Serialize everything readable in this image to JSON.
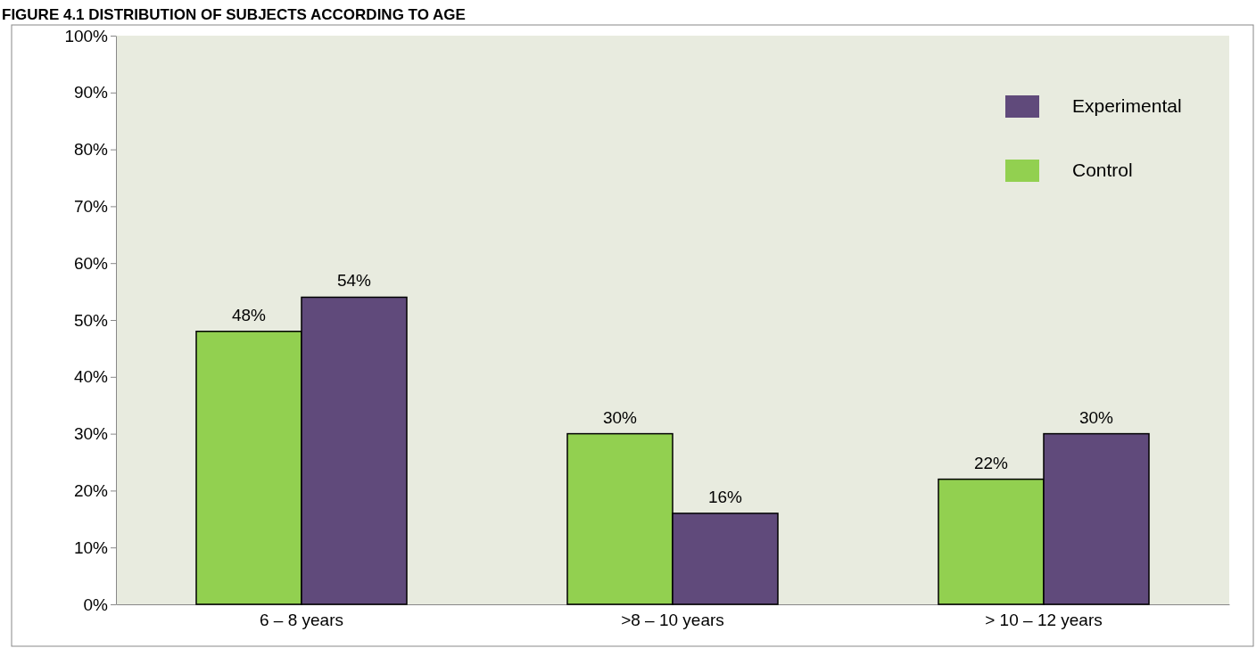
{
  "chart_data": {
    "type": "bar",
    "title": "FIGURE 4.1 DISTRIBUTION OF SUBJECTS ACCORDING TO AGE",
    "categories": [
      "6 – 8 years",
      ">8 – 10 years",
      "> 10 – 12 years"
    ],
    "series": [
      {
        "name": "Control",
        "color": "#92d050",
        "values": [
          48,
          30,
          22
        ]
      },
      {
        "name": "Experimental",
        "color": "#604a7b",
        "values": [
          54,
          16,
          30
        ]
      }
    ],
    "ylim": [
      0,
      100
    ],
    "yticks": [
      {
        "value": 0,
        "label": "0%"
      },
      {
        "value": 10,
        "label": "10%"
      },
      {
        "value": 20,
        "label": "20%"
      },
      {
        "value": 30,
        "label": "30%"
      },
      {
        "value": 40,
        "label": "40%"
      },
      {
        "value": 50,
        "label": "50%"
      },
      {
        "value": 60,
        "label": "60%"
      },
      {
        "value": 70,
        "label": "70%"
      },
      {
        "value": 80,
        "label": "80%"
      },
      {
        "value": 90,
        "label": "90%"
      },
      {
        "value": 100,
        "label": "100%"
      }
    ],
    "value_labels": [
      [
        "48%",
        "30%",
        "22%"
      ],
      [
        "54%",
        "16%",
        "30%"
      ]
    ],
    "legend": "top right"
  }
}
